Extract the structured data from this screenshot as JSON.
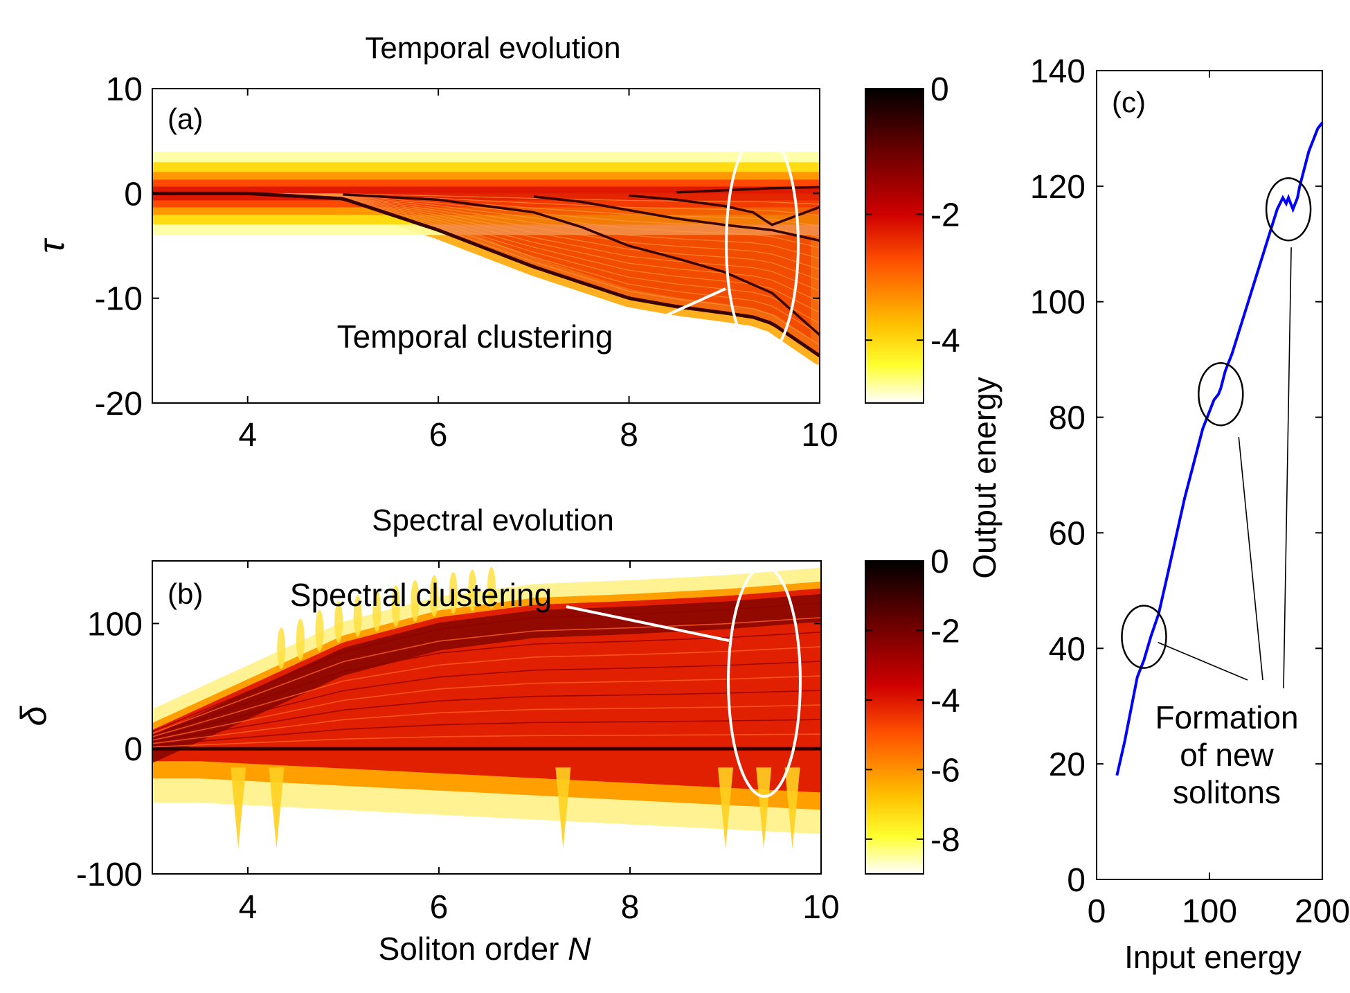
{
  "chart_data": [
    {
      "panel": "(a)",
      "type": "heatmap",
      "title": "Temporal evolution",
      "xlabel": "",
      "ylabel": "τ",
      "xlim": [
        3,
        10
      ],
      "ylim": [
        -20,
        10
      ],
      "xticks": [
        "4",
        "6",
        "8",
        "10"
      ],
      "yticks": [
        "10",
        "0",
        "-10",
        "-20"
      ],
      "colorbar": {
        "range": [
          -5,
          0
        ],
        "ticks": [
          "0",
          "-2",
          "-4"
        ],
        "colormap": "hot"
      },
      "annotation": "Temporal clustering",
      "ridges": [
        {
          "name": "",
          "x": [
            3,
            4,
            5,
            6,
            7,
            8,
            8.5,
            9,
            9.3,
            9.5,
            10
          ],
          "y": [
            0,
            0,
            -0.5,
            -3.5,
            -7,
            -10,
            -10.8,
            -11.4,
            -11.8,
            -12.4,
            -15.5
          ]
        },
        {
          "name": "",
          "x": [
            5,
            6,
            7,
            7.5,
            8,
            8.5,
            9,
            9.5,
            10
          ],
          "y": [
            -0.1,
            -0.6,
            -1.8,
            -3.2,
            -5,
            -6.2,
            -7.5,
            -9.5,
            -13.5
          ]
        },
        {
          "name": "",
          "x": [
            7,
            7.5,
            8,
            8.5,
            9,
            9.5,
            10
          ],
          "y": [
            -0.3,
            -0.8,
            -1.6,
            -2.4,
            -3,
            -3.5,
            -4.5
          ]
        },
        {
          "name": "",
          "x": [
            8,
            8.5,
            9,
            9.3,
            9.5,
            10
          ],
          "y": [
            -0.2,
            -0.6,
            -1.2,
            -1.8,
            -3,
            -1.3
          ]
        },
        {
          "name": "",
          "x": [
            8.5,
            9,
            9.5,
            10
          ],
          "y": [
            0.1,
            0.3,
            0.5,
            0.6
          ]
        }
      ]
    },
    {
      "panel": "(b)",
      "type": "heatmap",
      "title": "Spectral evolution",
      "xlabel": "Soliton order N",
      "ylabel": "δ",
      "xlim": [
        3,
        10
      ],
      "ylim": [
        -100,
        150
      ],
      "xticks": [
        "4",
        "6",
        "8",
        "10"
      ],
      "yticks": [
        "100",
        "0",
        "-100"
      ],
      "colorbar": {
        "range": [
          -9,
          0
        ],
        "ticks": [
          "0",
          "-2",
          "-4",
          "-6",
          "-8"
        ],
        "colormap": "hot"
      },
      "annotation": "Spectral clustering",
      "upper_edge": {
        "x": [
          3,
          4,
          5,
          6,
          7,
          8,
          9,
          10
        ],
        "y": [
          15,
          50,
          85,
          105,
          115,
          118,
          122,
          128
        ]
      }
    },
    {
      "panel": "(c)",
      "type": "line",
      "xlabel": "Input energy",
      "ylabel": "Output energy",
      "xlim": [
        0,
        200
      ],
      "ylim": [
        0,
        140
      ],
      "xticks": [
        "0",
        "100",
        "200"
      ],
      "yticks": [
        "0",
        "20",
        "40",
        "60",
        "80",
        "100",
        "120",
        "140"
      ],
      "color": "#0000ff",
      "annotation": [
        "Formation",
        "of new",
        "solitons"
      ],
      "x": [
        18,
        25,
        30,
        36,
        42,
        48,
        55,
        62,
        70,
        78,
        86,
        94,
        100,
        104,
        108,
        110,
        114,
        120,
        128,
        136,
        144,
        152,
        160,
        165,
        168,
        170,
        172,
        174,
        176,
        178,
        180,
        184,
        188,
        192,
        196,
        200
      ],
      "y": [
        18,
        24,
        29,
        35,
        38,
        42,
        46,
        52,
        59,
        66,
        72,
        78,
        81,
        83,
        84,
        85,
        88,
        91,
        96,
        101,
        106,
        111,
        116,
        118,
        117,
        118,
        117,
        116,
        117,
        118,
        120,
        123,
        126,
        128,
        130,
        131
      ],
      "circles_at": [
        [
          42,
          42
        ],
        [
          110,
          84
        ],
        [
          170,
          116
        ]
      ]
    }
  ]
}
